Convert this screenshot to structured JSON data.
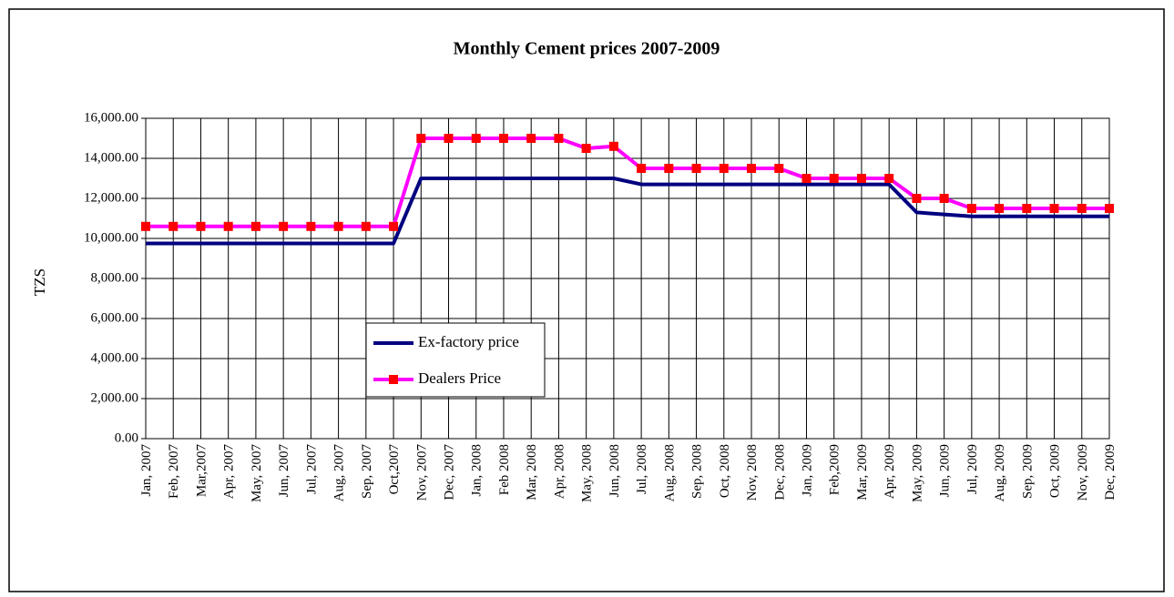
{
  "chart_data": {
    "type": "line",
    "title": "Monthly Cement prices 2007-2009",
    "y_label": "TZS",
    "categories": [
      "Jan, 2007",
      "Feb, 2007",
      "Mar,2007",
      "Apr, 2007",
      "May, 2007",
      "Jun, 2007",
      "Jul, 2007",
      "Aug, 2007",
      "Sep, 2007",
      "Oct,2007",
      "Nov, 2007",
      "Dec, 2007",
      "Jan, 2008",
      "Feb 2008",
      "Mar, 2008",
      "Apr, 2008",
      "May, 2008",
      "Jun, 2008",
      "Jul, 2008",
      "Aug, 2008",
      "Sep, 2008",
      "Oct, 2008",
      "Nov, 2008",
      "Dec, 2008",
      "Jan, 2009",
      "Feb,2009",
      "Mar, 2009",
      "Apr, 2009",
      "May, 2009",
      "Jun, 2009",
      "Jul, 2009",
      "Aug, 2009",
      "Sep, 2009",
      "Oct, 2009",
      "Nov, 2009",
      "Dec, 2009"
    ],
    "series": [
      {
        "name": "Ex-factory price",
        "color": "#000080",
        "values": [
          9750,
          9750,
          9750,
          9750,
          9750,
          9750,
          9750,
          9750,
          9750,
          9750,
          13000,
          13000,
          13000,
          13000,
          13000,
          13000,
          13000,
          13000,
          12700,
          12700,
          12700,
          12700,
          12700,
          12700,
          12700,
          12700,
          12700,
          12700,
          11300,
          11200,
          11100,
          11100,
          11100,
          11100,
          11100,
          11100
        ]
      },
      {
        "name": "Dealers Price",
        "color": "#ff00ff",
        "marker_color": "#ff0000",
        "values": [
          10600,
          10600,
          10600,
          10600,
          10600,
          10600,
          10600,
          10600,
          10600,
          10600,
          15000,
          15000,
          15000,
          15000,
          15000,
          15000,
          14500,
          14600,
          13500,
          13500,
          13500,
          13500,
          13500,
          13500,
          13000,
          13000,
          13000,
          13000,
          12000,
          12000,
          11500,
          11500,
          11500,
          11500,
          11500,
          11500
        ]
      }
    ],
    "ylim": [
      0,
      16000
    ],
    "yticks": [
      {
        "value": 0,
        "label": "0.00"
      },
      {
        "value": 2000,
        "label": "2,000.00"
      },
      {
        "value": 4000,
        "label": "4,000.00"
      },
      {
        "value": 6000,
        "label": "6,000.00"
      },
      {
        "value": 8000,
        "label": "8,000.00"
      },
      {
        "value": 10000,
        "label": "10,000.00"
      },
      {
        "value": 12000,
        "label": "12,000.00"
      },
      {
        "value": 14000,
        "label": "14,000.00"
      },
      {
        "value": 16000,
        "label": "16,000.00"
      }
    ],
    "grid": true
  }
}
